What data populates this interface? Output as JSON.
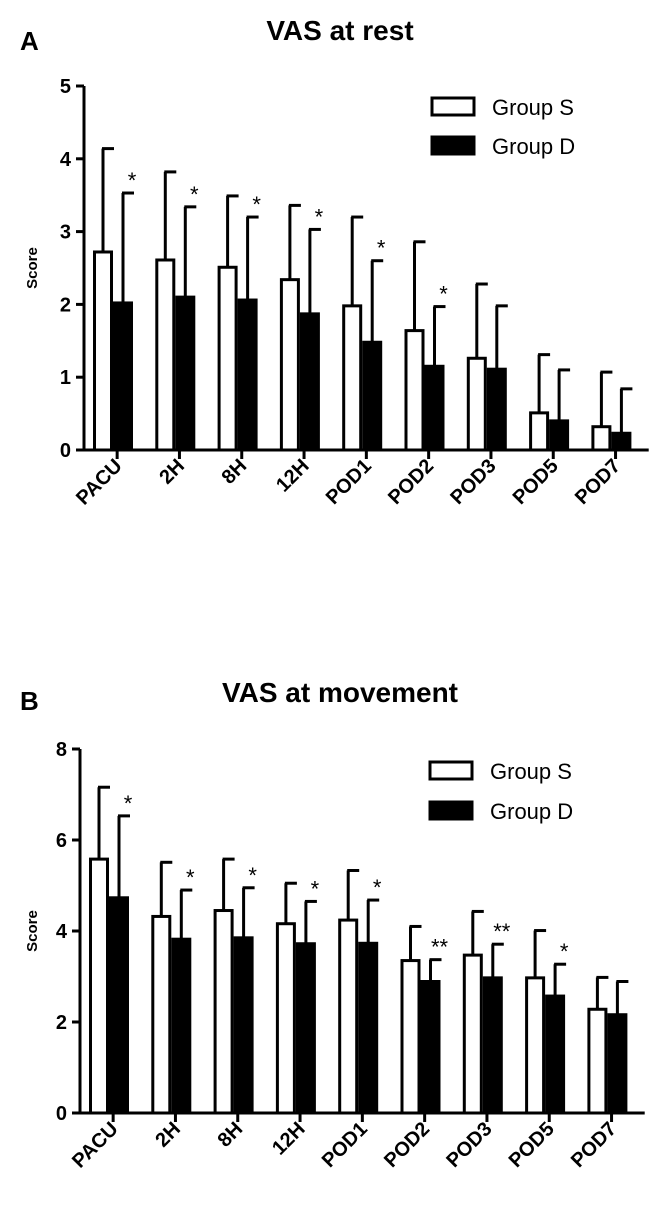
{
  "chart_data": [
    {
      "type": "bar",
      "panel": "A",
      "title": "VAS at rest",
      "xlabel": "",
      "ylabel": "Score",
      "ylim": [
        0,
        5
      ],
      "yticks": [
        0,
        1,
        2,
        3,
        4,
        5
      ],
      "categories": [
        "PACU",
        "2H",
        "8H",
        "12H",
        "POD1",
        "POD2",
        "POD3",
        "POD5",
        "POD7"
      ],
      "series": [
        {
          "name": "Group S",
          "fill": "#ffffff",
          "values": [
            2.72,
            2.61,
            2.51,
            2.34,
            1.98,
            1.64,
            1.26,
            0.51,
            0.32
          ],
          "error": [
            1.42,
            1.21,
            0.98,
            1.02,
            1.22,
            1.22,
            1.02,
            0.8,
            0.75
          ]
        },
        {
          "name": "Group D",
          "fill": "#000000",
          "values": [
            2.02,
            2.1,
            2.06,
            1.87,
            1.48,
            1.15,
            1.11,
            0.4,
            0.23
          ],
          "error": [
            1.51,
            1.24,
            1.14,
            1.16,
            1.12,
            0.82,
            0.87,
            0.7,
            0.61
          ]
        }
      ],
      "significance": [
        "*",
        "*",
        "*",
        "*",
        "*",
        "*",
        "",
        "",
        ""
      ],
      "legend": "top-right"
    },
    {
      "type": "bar",
      "panel": "B",
      "title": "VAS at movement",
      "xlabel": "",
      "ylabel": "Score",
      "ylim": [
        0,
        8
      ],
      "yticks": [
        0,
        2,
        4,
        6,
        8
      ],
      "categories": [
        "PACU",
        "2H",
        "8H",
        "12H",
        "POD1",
        "POD2",
        "POD3",
        "POD5",
        "POD7"
      ],
      "series": [
        {
          "name": "Group S",
          "fill": "#ffffff",
          "values": [
            5.58,
            4.32,
            4.45,
            4.16,
            4.24,
            3.35,
            3.47,
            2.97,
            2.28
          ],
          "error": [
            1.58,
            1.19,
            1.13,
            0.89,
            1.09,
            0.75,
            0.96,
            1.04,
            0.7
          ]
        },
        {
          "name": "Group D",
          "fill": "#000000",
          "values": [
            4.73,
            3.82,
            3.85,
            3.72,
            3.73,
            2.89,
            2.97,
            2.57,
            2.16
          ],
          "error": [
            1.8,
            1.08,
            1.1,
            0.93,
            0.95,
            0.48,
            0.74,
            0.7,
            0.73
          ]
        }
      ],
      "significance": [
        "*",
        "*",
        "*",
        "*",
        "*",
        "**",
        "**",
        "*",
        ""
      ],
      "legend": "top-right"
    }
  ]
}
